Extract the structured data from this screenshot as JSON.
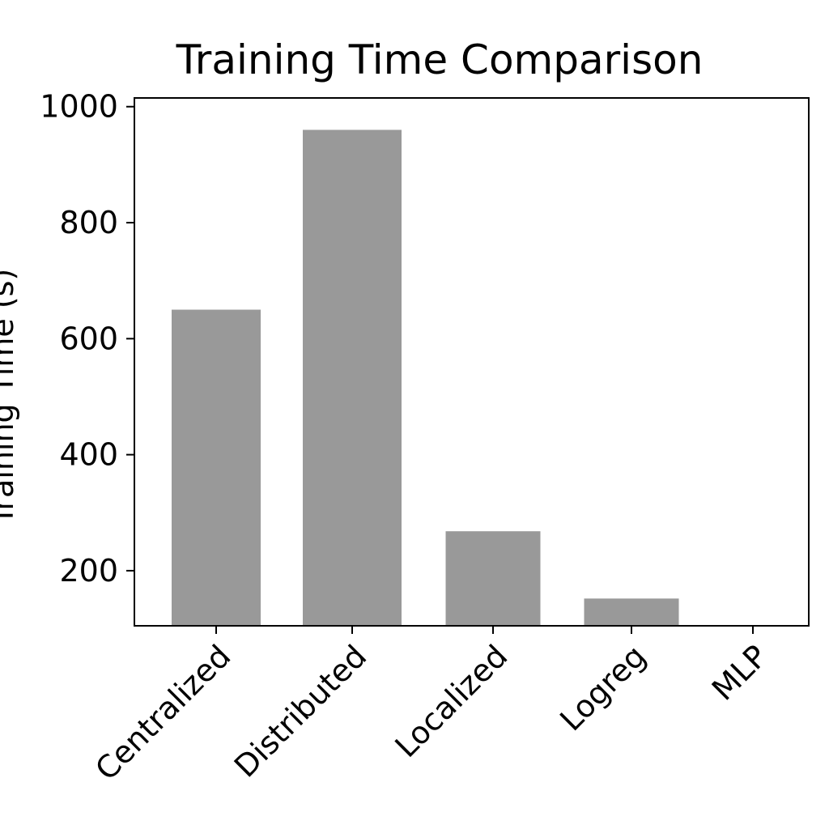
{
  "chart_data": {
    "type": "bar",
    "title": "Training Time Comparison",
    "xlabel": "",
    "ylabel": "Training Time (s)",
    "categories": [
      "Centralized",
      "Distributed",
      "Localized",
      "Logreg",
      "MLP"
    ],
    "values": [
      650,
      960,
      268,
      152,
      100
    ],
    "ylim": [
      105,
      1015
    ],
    "yticks": [
      200,
      400,
      600,
      800,
      1000
    ],
    "bar_color": "#999999",
    "grid": false,
    "legend": "none"
  }
}
